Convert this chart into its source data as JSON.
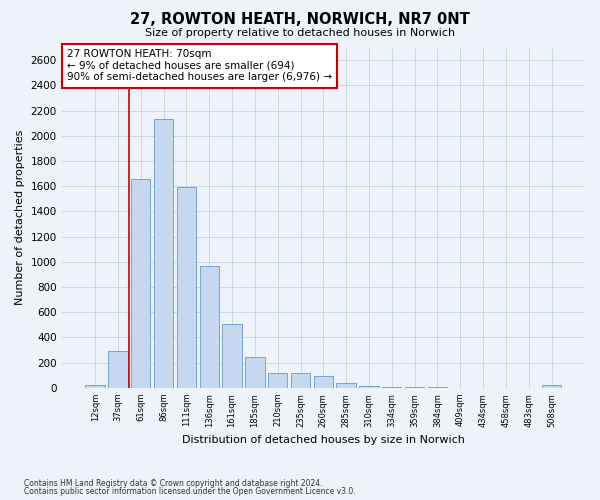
{
  "title": "27, ROWTON HEATH, NORWICH, NR7 0NT",
  "subtitle": "Size of property relative to detached houses in Norwich",
  "xlabel": "Distribution of detached houses by size in Norwich",
  "ylabel": "Number of detached properties",
  "bar_color": "#c5d8ef",
  "bar_edge_color": "#6699cc",
  "grid_color": "#c8d8e8",
  "background_color": "#eef2f9",
  "annotation_line_color": "#cc0000",
  "annotation_box_color": "#ffffff",
  "annotation_box_edge": "#cc0000",
  "annotation_text": "27 ROWTON HEATH: 70sqm\n← 9% of detached houses are smaller (694)\n90% of semi-detached houses are larger (6,976) →",
  "footer1": "Contains HM Land Registry data © Crown copyright and database right 2024.",
  "footer2": "Contains public sector information licensed under the Open Government Licence v3.0.",
  "categories": [
    "12sqm",
    "37sqm",
    "61sqm",
    "86sqm",
    "111sqm",
    "136sqm",
    "161sqm",
    "185sqm",
    "210sqm",
    "235sqm",
    "260sqm",
    "285sqm",
    "310sqm",
    "334sqm",
    "359sqm",
    "384sqm",
    "409sqm",
    "434sqm",
    "458sqm",
    "483sqm",
    "508sqm"
  ],
  "values": [
    20,
    295,
    1660,
    2130,
    1590,
    965,
    505,
    245,
    120,
    115,
    95,
    42,
    18,
    10,
    6,
    5,
    2,
    2,
    2,
    2,
    20
  ],
  "ylim": [
    0,
    2700
  ],
  "yticks": [
    0,
    200,
    400,
    600,
    800,
    1000,
    1200,
    1400,
    1600,
    1800,
    2000,
    2200,
    2400,
    2600
  ],
  "red_line_x": 1.5,
  "figsize": [
    6.0,
    5.0
  ],
  "dpi": 100
}
